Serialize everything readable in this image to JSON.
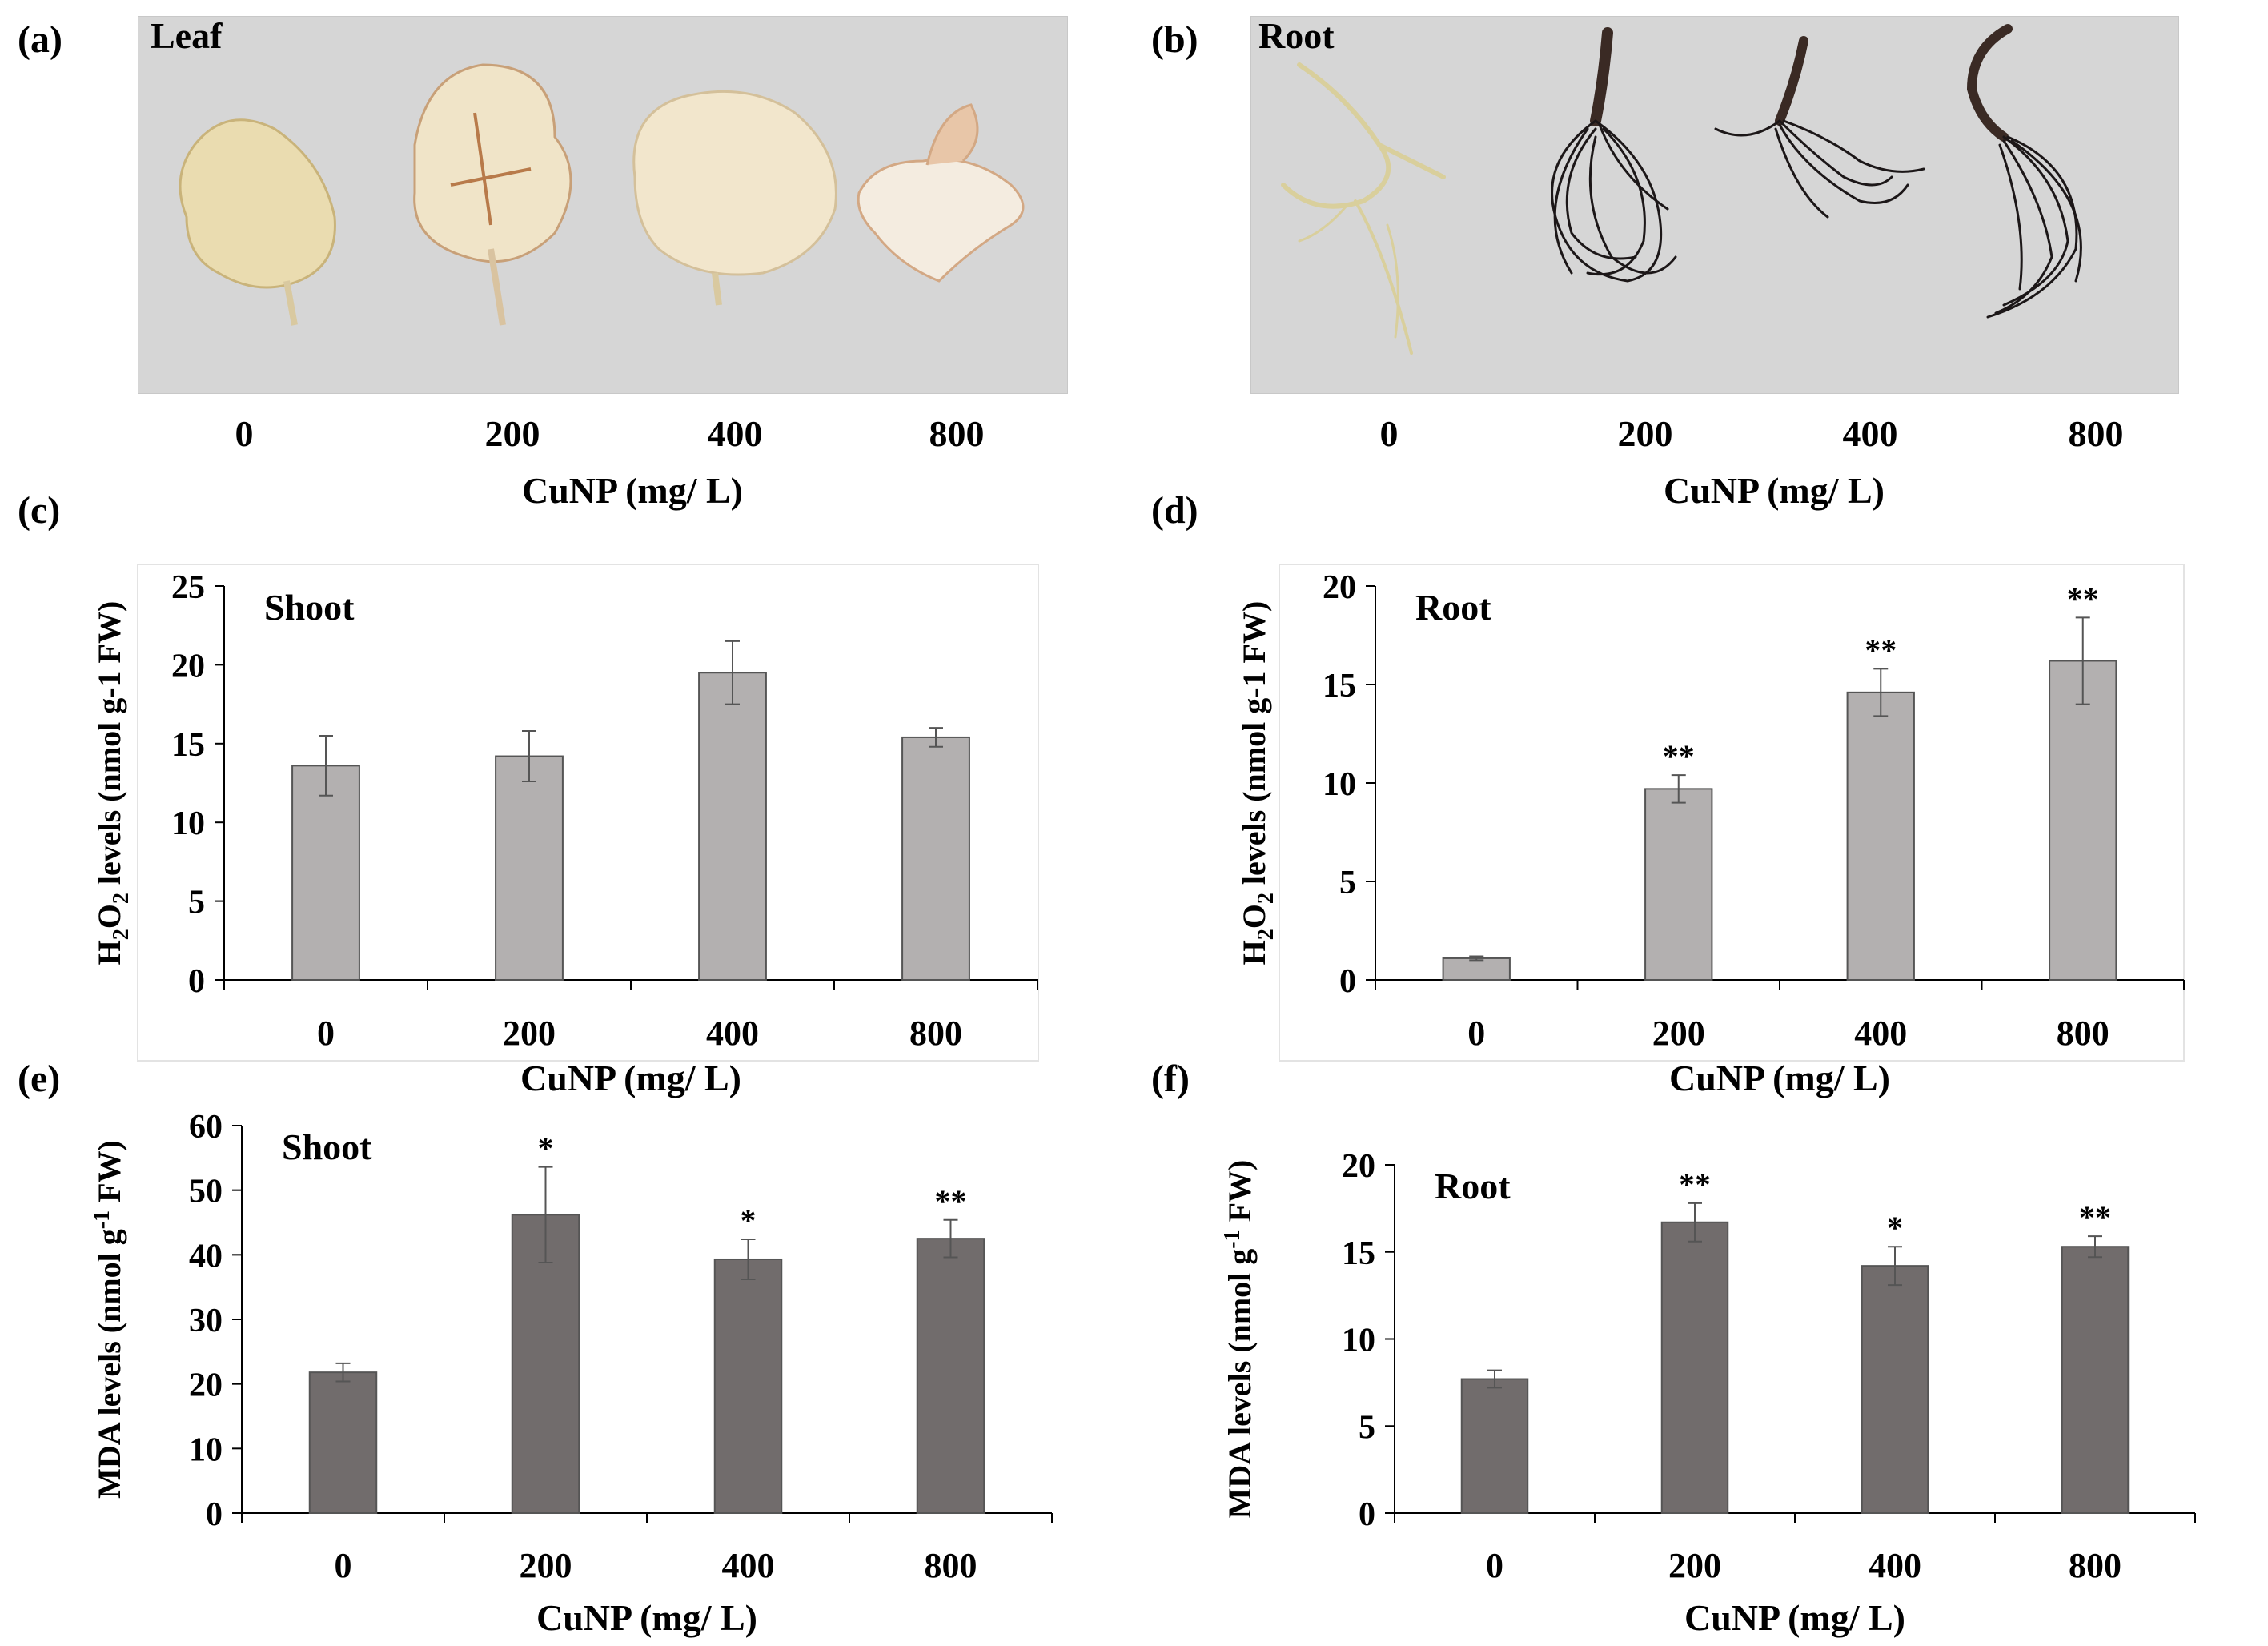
{
  "panels": {
    "a": {
      "label": "(a)",
      "title": "Leaf",
      "categories": [
        "0",
        "200",
        "400",
        "800"
      ],
      "xlabel": "CuNP (mg/ L)"
    },
    "b": {
      "label": "(b)",
      "title": "Root",
      "categories": [
        "0",
        "200",
        "400",
        "800"
      ],
      "xlabel": "CuNP (mg/ L)"
    },
    "c": {
      "label": "(c)"
    },
    "d": {
      "label": "(d)"
    },
    "e": {
      "label": "(e)"
    },
    "f": {
      "label": "(f)"
    }
  },
  "colors": {
    "h2o2_bar": "#b3b0b0",
    "mda_bar": "#716c6c",
    "photo_bg": "#d6d6d6",
    "leaf": "#eadcb0",
    "root_control": "#d9cf9c",
    "root_treated": "#1c1718"
  },
  "chart_data": [
    {
      "id": "c",
      "type": "bar",
      "title": "Shoot",
      "categories": [
        "0",
        "200",
        "400",
        "800"
      ],
      "values": [
        13.6,
        14.2,
        19.5,
        15.4
      ],
      "errors": [
        1.9,
        1.6,
        2.0,
        0.6
      ],
      "significance": [
        "",
        "",
        "",
        ""
      ],
      "ylim": [
        0,
        25
      ],
      "yticks": [
        0,
        5,
        10,
        15,
        20,
        25
      ],
      "ylabel_parts": [
        "H",
        "2",
        "O",
        "2",
        " levels (nmol g-1 FW)"
      ],
      "xlabel": "CuNP (mg/ L)",
      "color": "#b3b0b0",
      "box": true
    },
    {
      "id": "d",
      "type": "bar",
      "title": "Root",
      "categories": [
        "0",
        "200",
        "400",
        "800"
      ],
      "values": [
        1.1,
        9.7,
        14.6,
        16.2
      ],
      "errors": [
        0.1,
        0.7,
        1.2,
        2.2
      ],
      "significance": [
        "",
        "**",
        "**",
        "**"
      ],
      "ylim": [
        0,
        20
      ],
      "yticks": [
        0,
        5,
        10,
        15,
        20
      ],
      "ylabel_parts": [
        "H",
        "2",
        "O",
        "2",
        " levels (nmol g-1 FW)"
      ],
      "xlabel": "CuNP (mg/ L)",
      "color": "#b3b0b0",
      "box": true
    },
    {
      "id": "e",
      "type": "bar",
      "title": "Shoot",
      "categories": [
        "0",
        "200",
        "400",
        "800"
      ],
      "values": [
        21.8,
        46.2,
        39.3,
        42.5
      ],
      "errors": [
        1.4,
        7.4,
        3.1,
        2.9
      ],
      "significance": [
        "",
        "*",
        "*",
        "**"
      ],
      "ylim": [
        0,
        60
      ],
      "yticks": [
        0,
        10,
        20,
        30,
        40,
        50,
        60
      ],
      "ylabel_parts": [
        "MDA levels (nmol g",
        "-1",
        " FW)"
      ],
      "xlabel": "CuNP (mg/ L)",
      "color": "#716c6c",
      "box": false
    },
    {
      "id": "f",
      "type": "bar",
      "title": "Root",
      "categories": [
        "0",
        "200",
        "400",
        "800"
      ],
      "values": [
        7.7,
        16.7,
        14.2,
        15.3
      ],
      "errors": [
        0.5,
        1.1,
        1.1,
        0.6
      ],
      "significance": [
        "",
        "**",
        "*",
        "**"
      ],
      "ylim": [
        0,
        20
      ],
      "yticks": [
        0,
        5,
        10,
        15,
        20
      ],
      "ylabel_parts": [
        "MDA levels (nmol g",
        "-1",
        " FW)"
      ],
      "xlabel": "CuNP (mg/ L)",
      "color": "#716c6c",
      "box": false
    }
  ]
}
